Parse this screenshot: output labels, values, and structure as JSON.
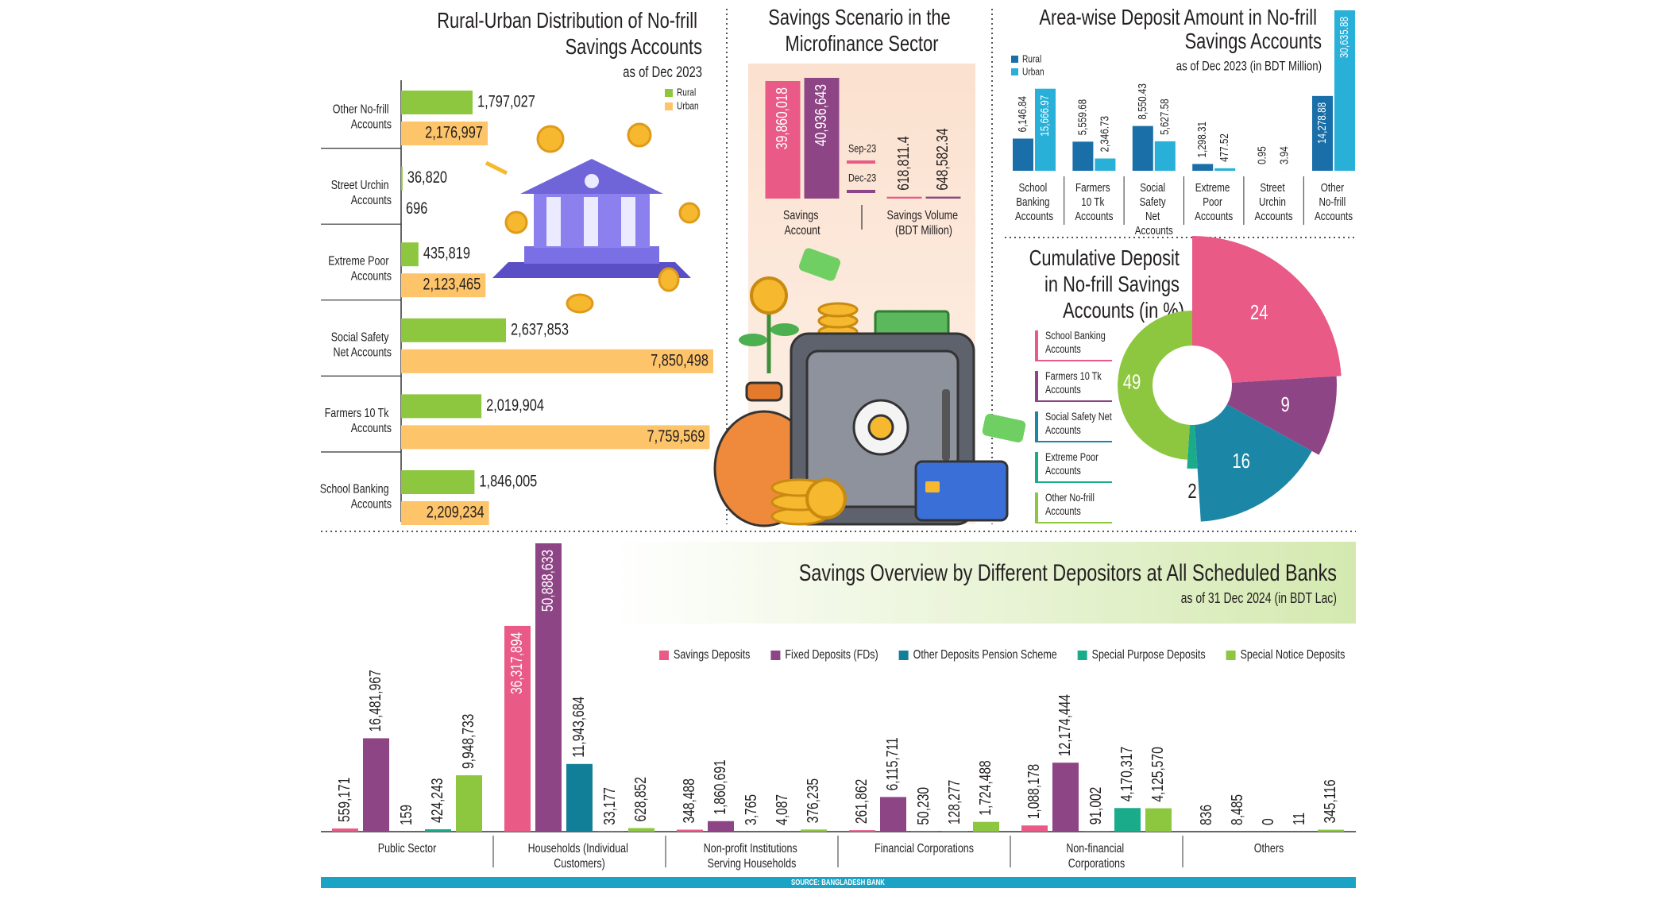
{
  "chart_data": [
    {
      "type": "bar",
      "orientation": "horizontal",
      "title": "Rural-Urban Distribution of No-frill Savings Accounts",
      "subtitle": "as of Dec 2023",
      "categories": [
        "Other No-frill Accounts",
        "Street Urchin Accounts",
        "Extreme Poor Accounts",
        "Social Safety Net Accounts",
        "Farmers 10 Tk Accounts",
        "School Banking Accounts"
      ],
      "series": [
        {
          "name": "Rural",
          "color": "#8dc63f",
          "values": [
            1797027,
            36820,
            435819,
            2637853,
            2019904,
            1846005
          ],
          "value_labels": [
            "1,797,027",
            "36,820",
            "435,819",
            "2,637,853",
            "2,019,904",
            "1,846,005"
          ]
        },
        {
          "name": "Urban",
          "color": "#fdc46a",
          "values": [
            2176997,
            696,
            2123465,
            7850498,
            7759569,
            2209234
          ],
          "value_labels": [
            "2,176,997",
            "696",
            "2,123,465",
            "7,850,498",
            "7,759,569",
            "2,209,234"
          ]
        }
      ]
    },
    {
      "type": "bar",
      "title": "Savings Scenario in the Microfinance Sector",
      "categories": [
        "Savings Account",
        "Savings Volume (BDT Million)"
      ],
      "series": [
        {
          "name": "Sep-23",
          "color": "#e95a86",
          "values": [
            39860018,
            618811.4
          ],
          "value_labels": [
            "39,860,018",
            "618,811.4"
          ]
        },
        {
          "name": "Dec-23",
          "color": "#8e4585",
          "values": [
            40936643,
            648582.34
          ],
          "value_labels": [
            "40,936,643",
            "648,582.34"
          ]
        }
      ]
    },
    {
      "type": "bar",
      "title": "Area-wise Deposit Amount in No-frill Savings Accounts",
      "subtitle": "as of Dec 2023 (in BDT Million)",
      "categories": [
        "School Banking Accounts",
        "Farmers 10 Tk Accounts",
        "Social Safety Net Accounts",
        "Extreme Poor Accounts",
        "Street Urchin Accounts",
        "Other No-frill Accounts"
      ],
      "series": [
        {
          "name": "Rural",
          "color": "#1a6fa8",
          "values": [
            6146.84,
            5559.68,
            8550.43,
            1298.31,
            0.95,
            14278.88
          ],
          "value_labels": [
            "6,146.84",
            "5,559.68",
            "8,550.43",
            "1,298.31",
            "0.95",
            "14,278.88"
          ]
        },
        {
          "name": "Urban",
          "color": "#29b0d8",
          "values": [
            15666.97,
            2346.73,
            5627.58,
            477.52,
            3.94,
            30635.88
          ],
          "value_labels": [
            "15,666.97",
            "2,346.73",
            "5,627.58",
            "477.52",
            "3.94",
            "30,635.88"
          ]
        }
      ]
    },
    {
      "type": "pie",
      "title": "Cumulative Deposit in No-frill Savings Accounts (in %)",
      "categories": [
        "School Banking Accounts",
        "Farmers 10 Tk Accounts",
        "Social Safety Net Accounts",
        "Extreme Poor Accounts",
        "Other No-frill Accounts"
      ],
      "values": [
        24,
        9,
        16,
        2,
        49
      ],
      "colors": [
        "#e95a86",
        "#8e4585",
        "#1b86a6",
        "#1aab8a",
        "#8dc63f"
      ]
    },
    {
      "type": "bar",
      "title": "Savings Overview by Different Depositors at All Scheduled Banks",
      "subtitle": "as of 31 Dec 2024 (in BDT Lac)",
      "categories": [
        "Public Sector",
        "Households (Individual Customers)",
        "Non-profit Institutions Serving Households",
        "Financial Corporations",
        "Non-financial Corporations",
        "Others"
      ],
      "series": [
        {
          "name": "Savings Deposits",
          "color": "#e95a86",
          "values": [
            559171,
            36317894,
            348488,
            261862,
            1088178,
            836
          ],
          "value_labels": [
            "559,171",
            "36,317,894",
            "348,488",
            "261,862",
            "1,088,178",
            "836"
          ]
        },
        {
          "name": "Fixed Deposits (FDs)",
          "color": "#8e4585",
          "values": [
            16481967,
            50888633,
            1860691,
            6115711,
            12174444,
            8485
          ],
          "value_labels": [
            "16,481,967",
            "50,888,633",
            "1,860,691",
            "6,115,711",
            "12,174,444",
            "8,485"
          ]
        },
        {
          "name": "Other Deposits Pension Scheme",
          "color": "#127f98",
          "values": [
            159,
            11943684,
            3765,
            50230,
            91002,
            0
          ],
          "value_labels": [
            "159",
            "11,943,684",
            "3,765",
            "50,230",
            "91,002",
            "0"
          ]
        },
        {
          "name": "Special Purpose Deposits",
          "color": "#1aab8a",
          "values": [
            424243,
            33177,
            4087,
            128277,
            4170317,
            11
          ],
          "value_labels": [
            "424,243",
            "33,177",
            "4,087",
            "128,277",
            "4,170,317",
            "11"
          ]
        },
        {
          "name": "Special Notice Deposits",
          "color": "#8dc63f",
          "values": [
            9948733,
            628852,
            376235,
            1724488,
            4125570,
            345116
          ],
          "value_labels": [
            "9,948,733",
            "628,852",
            "376,235",
            "1,724,488",
            "4,125,570",
            "345,116"
          ]
        }
      ]
    }
  ],
  "source": "SOURCE: BANGLADESH BANK"
}
